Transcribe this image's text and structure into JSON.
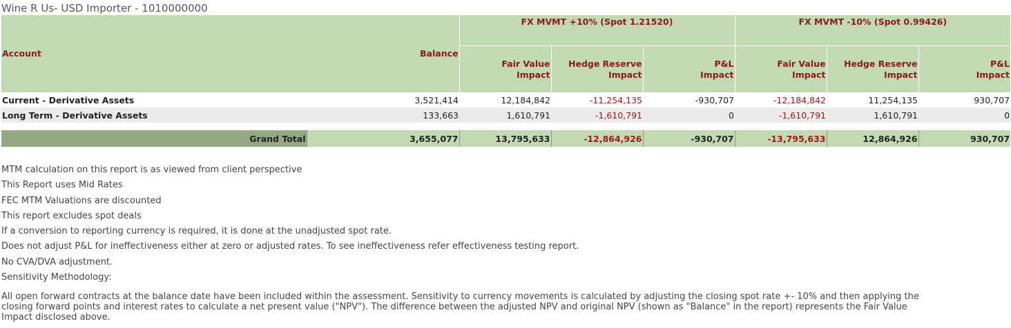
{
  "report": {
    "title": "Wine R Us- USD Importer - 1010000000"
  },
  "table": {
    "headers": {
      "account": "Account",
      "balance": "Balance",
      "group1": "FX MVMT +10% (Spot 1.21520)",
      "group2": "FX MVMT -10% (Spot 0.99426)",
      "fair_value": "Fair Value Impact",
      "hedge_reserve": "Hedge Reserve Impact",
      "pl": "P&L Impact"
    },
    "rows": [
      {
        "account": "Current - Derivative Assets",
        "balance": "3,521,414",
        "up_fv": "12,184,842",
        "up_hr": "-11,254,135",
        "up_pl": "-930,707",
        "dn_fv": "-12,184,842",
        "dn_hr": "11,254,135",
        "dn_pl": "930,707"
      },
      {
        "account": "Long Term - Derivative Assets",
        "balance": "133,663",
        "up_fv": "1,610,791",
        "up_hr": "-1,610,791",
        "up_pl": "0",
        "dn_fv": "-1,610,791",
        "dn_hr": "1,610,791",
        "dn_pl": "0"
      }
    ],
    "total": {
      "label": "Grand Total",
      "balance": "3,655,077",
      "up_fv": "13,795,633",
      "up_hr": "-12,864,926",
      "up_pl": "-930,707",
      "dn_fv": "-13,795,633",
      "dn_hr": "12,864,926",
      "dn_pl": "930,707"
    }
  },
  "notes": {
    "lines": [
      "MTM calculation on this report is as viewed from client perspective",
      "This Report uses Mid Rates",
      "FEC MTM Valuations are discounted",
      "This report excludes spot deals",
      "If a conversion to reporting currency is required, it is done at the unadjusted spot rate.",
      "Does not adjust P&L for ineffectiveness either at zero or adjusted rates.  To see ineffectiveness refer effectiveness testing report.",
      "No CVA/DVA adjustment.",
      "Sensitivity Methodology:"
    ],
    "methodology": "All open forward contracts at the balance date have been included within the assessment. Sensitivity to currency movements is calculated by adjusting the closing spot rate +- 10% and then applying the closing forward points and interest rates to calculate a net present value (\"NPV\"). The difference between the adjusted NPV and original NPV (shown as \"Balance\" in the report) represents the Fair Value Impact disclosed above."
  },
  "colors": {
    "header_bg": "#c2d9b3",
    "header_text": "#8b1a1a",
    "negative": "#a01818",
    "total_label_bg": "#93a883",
    "alt_row": "#ebebeb"
  }
}
